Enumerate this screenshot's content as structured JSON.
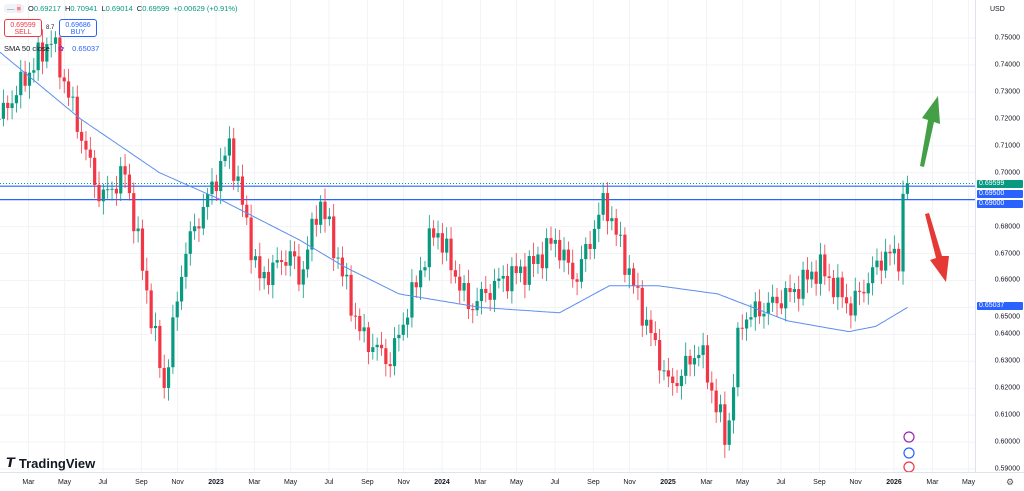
{
  "header": {
    "open_label": "O",
    "open": "0.69217",
    "high_label": "H",
    "high": "0.70941",
    "low_label": "L",
    "low": "0.69014",
    "close_label": "C",
    "close": "0.69599",
    "change": "+0.00629 (+0.91%)"
  },
  "trade": {
    "sell_price": "0.69599",
    "sell_label": "SELL",
    "buy_price": "0.69686",
    "buy_label": "BUY",
    "spread": "8.7"
  },
  "indicator": {
    "name": "SMA 50 close",
    "value": "0.65037"
  },
  "currency": "USD",
  "brand": "TradingView",
  "colors": {
    "up": "#089981",
    "down": "#f23645",
    "sma": "#5b8def",
    "line": "#2962ff",
    "arrow_up": "#43a047",
    "arrow_down": "#e53935"
  },
  "chart_data": {
    "type": "candlestick",
    "ylim": [
      0.585,
      0.757
    ],
    "y_ticks": [
      "0.75000",
      "0.74000",
      "0.73000",
      "0.72000",
      "0.71000",
      "0.70000",
      "0.69000",
      "0.68000",
      "0.67000",
      "0.66000",
      "0.65000",
      "0.64000",
      "0.63000",
      "0.62000",
      "0.61000",
      "0.60000",
      "0.59000"
    ],
    "x_ticks": [
      [
        "Mar",
        2022.17
      ],
      [
        "May",
        2022.33
      ],
      [
        "Jul",
        2022.5
      ],
      [
        "Sep",
        2022.67
      ],
      [
        "Nov",
        2022.83
      ],
      [
        "2023",
        2023.0
      ],
      [
        "Mar",
        2023.17
      ],
      [
        "May",
        2023.33
      ],
      [
        "Jul",
        2023.5
      ],
      [
        "Sep",
        2023.67
      ],
      [
        "Nov",
        2023.83
      ],
      [
        "2024",
        2024.0
      ],
      [
        "Mar",
        2024.17
      ],
      [
        "May",
        2024.33
      ],
      [
        "Jul",
        2024.5
      ],
      [
        "Sep",
        2024.67
      ],
      [
        "Nov",
        2024.83
      ],
      [
        "2025",
        2025.0
      ],
      [
        "Mar",
        2025.17
      ],
      [
        "May",
        2025.33
      ],
      [
        "Jul",
        2025.5
      ],
      [
        "Sep",
        2025.67
      ],
      [
        "Nov",
        2025.83
      ],
      [
        "2026",
        2026.0
      ],
      [
        "Mar",
        2026.17
      ],
      [
        "May",
        2026.33
      ]
    ],
    "price_path": [
      [
        2022.04,
        0.72
      ],
      [
        2022.27,
        0.75
      ],
      [
        2022.49,
        0.69
      ],
      [
        2022.6,
        0.7
      ],
      [
        2022.77,
        0.62
      ],
      [
        2022.86,
        0.67
      ],
      [
        2023.06,
        0.71
      ],
      [
        2023.19,
        0.66
      ],
      [
        2023.33,
        0.67
      ],
      [
        2023.37,
        0.66
      ],
      [
        2023.46,
        0.69
      ],
      [
        2023.64,
        0.64
      ],
      [
        2023.77,
        0.63
      ],
      [
        2023.97,
        0.68
      ],
      [
        2024.12,
        0.65
      ],
      [
        2024.26,
        0.66
      ],
      [
        2024.39,
        0.665
      ],
      [
        2024.5,
        0.675
      ],
      [
        2024.59,
        0.66
      ],
      [
        2024.72,
        0.69
      ],
      [
        2024.88,
        0.65
      ],
      [
        2025.01,
        0.62
      ],
      [
        2025.14,
        0.635
      ],
      [
        2025.26,
        0.6
      ],
      [
        2025.32,
        0.645
      ],
      [
        2025.54,
        0.655
      ],
      [
        2025.67,
        0.665
      ],
      [
        2025.81,
        0.65
      ],
      [
        2025.96,
        0.67
      ],
      [
        2026.02,
        0.668
      ],
      [
        2026.04,
        0.69
      ],
      [
        2026.06,
        0.696
      ]
    ],
    "sma50": [
      [
        2022.04,
        0.745
      ],
      [
        2022.4,
        0.72
      ],
      [
        2022.75,
        0.7
      ],
      [
        2023.02,
        0.69
      ],
      [
        2023.37,
        0.675
      ],
      [
        2023.57,
        0.665
      ],
      [
        2023.81,
        0.655
      ],
      [
        2024.17,
        0.65
      ],
      [
        2024.52,
        0.648
      ],
      [
        2024.74,
        0.658
      ],
      [
        2024.96,
        0.658
      ],
      [
        2025.22,
        0.655
      ],
      [
        2025.53,
        0.645
      ],
      [
        2025.8,
        0.641
      ],
      [
        2025.92,
        0.643
      ],
      [
        2026.06,
        0.65
      ]
    ],
    "levels": {
      "last": "0.69599",
      "resistance_1": "0.69500",
      "resistance_2": "0.69000",
      "sma": "0.65037"
    }
  }
}
